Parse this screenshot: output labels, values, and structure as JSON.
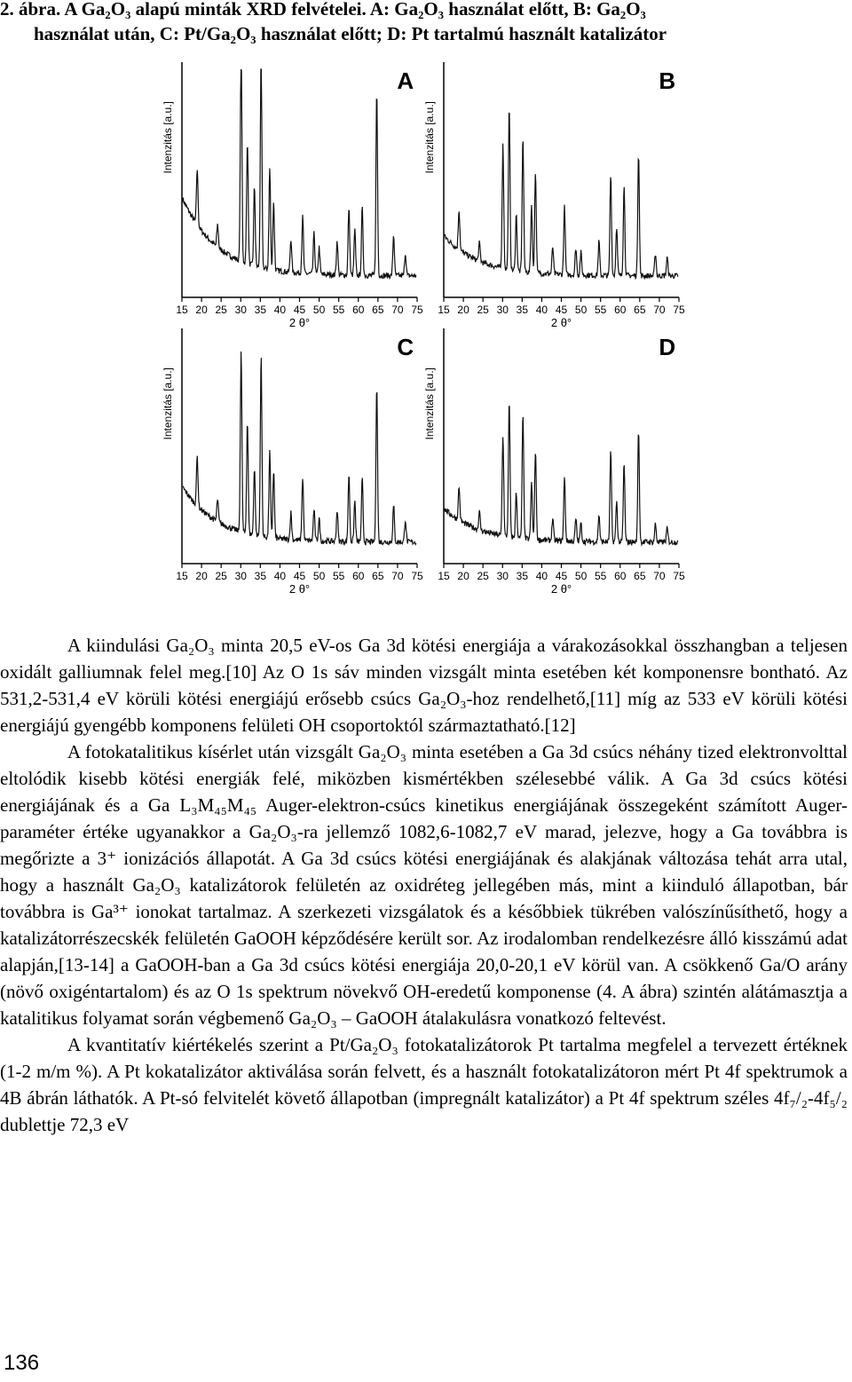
{
  "caption": {
    "line1": "2. ábra. A Ga₂O₃ alapú minták XRD felvételei. A: Ga₂O₃ használat előtt, B: Ga₂O₃",
    "line2": "használat után, C: Pt/Ga₂O₃ használat előtt; D: Pt tartalmú használt katalizátor"
  },
  "chart_data": [
    {
      "type": "line",
      "panel": "A",
      "xlabel": "2 θ°",
      "ylabel": "Intenzitás [a.u.]",
      "x_ticks": [
        15,
        20,
        25,
        30,
        35,
        40,
        45,
        50,
        55,
        60,
        65,
        70,
        75
      ],
      "xlim": [
        15,
        75
      ],
      "peaks": [
        [
          18.9,
          0.25
        ],
        [
          24.1,
          0.1
        ],
        [
          30.1,
          0.95
        ],
        [
          31.7,
          0.55
        ],
        [
          33.5,
          0.35
        ],
        [
          35.2,
          0.95
        ],
        [
          37.4,
          0.45
        ],
        [
          38.4,
          0.3
        ],
        [
          42.8,
          0.15
        ],
        [
          45.8,
          0.25
        ],
        [
          48.7,
          0.18
        ],
        [
          50.0,
          0.12
        ],
        [
          54.6,
          0.15
        ],
        [
          57.6,
          0.3
        ],
        [
          59.1,
          0.2
        ],
        [
          61.0,
          0.3
        ],
        [
          64.7,
          0.82
        ],
        [
          69.0,
          0.18
        ],
        [
          72.0,
          0.1
        ]
      ],
      "baseline": 0.35
    },
    {
      "type": "line",
      "panel": "B",
      "xlabel": "2 θ°",
      "ylabel": "Intenzitás [a.u.]",
      "x_ticks": [
        15,
        20,
        25,
        30,
        35,
        40,
        45,
        50,
        55,
        60,
        65,
        70,
        75
      ],
      "xlim": [
        15,
        75
      ],
      "peaks": [
        [
          18.9,
          0.18
        ],
        [
          24.1,
          0.08
        ],
        [
          30.1,
          0.55
        ],
        [
          31.7,
          0.72
        ],
        [
          33.5,
          0.25
        ],
        [
          35.2,
          0.6
        ],
        [
          37.4,
          0.3
        ],
        [
          38.4,
          0.45
        ],
        [
          42.8,
          0.12
        ],
        [
          45.8,
          0.3
        ],
        [
          48.7,
          0.12
        ],
        [
          50.0,
          0.1
        ],
        [
          54.6,
          0.15
        ],
        [
          57.6,
          0.45
        ],
        [
          59.1,
          0.22
        ],
        [
          61.0,
          0.4
        ],
        [
          64.7,
          0.55
        ],
        [
          69.0,
          0.1
        ],
        [
          72.0,
          0.08
        ]
      ],
      "baseline": 0.18
    },
    {
      "type": "line",
      "panel": "C",
      "xlabel": "2 θ°",
      "ylabel": "Intenzitás [a.u.]",
      "x_ticks": [
        15,
        20,
        25,
        30,
        35,
        40,
        45,
        50,
        55,
        60,
        65,
        70,
        75
      ],
      "xlim": [
        15,
        75
      ],
      "peaks": [
        [
          18.9,
          0.22
        ],
        [
          24.1,
          0.1
        ],
        [
          30.1,
          0.8
        ],
        [
          31.7,
          0.5
        ],
        [
          33.5,
          0.3
        ],
        [
          35.2,
          0.8
        ],
        [
          37.4,
          0.38
        ],
        [
          38.4,
          0.3
        ],
        [
          42.8,
          0.12
        ],
        [
          45.8,
          0.28
        ],
        [
          48.7,
          0.14
        ],
        [
          50.0,
          0.1
        ],
        [
          54.6,
          0.14
        ],
        [
          57.6,
          0.3
        ],
        [
          59.1,
          0.18
        ],
        [
          61.0,
          0.28
        ],
        [
          64.7,
          0.7
        ],
        [
          69.0,
          0.16
        ],
        [
          72.0,
          0.1
        ]
      ],
      "baseline": 0.25
    },
    {
      "type": "line",
      "panel": "D",
      "xlabel": "2 θ°",
      "ylabel": "Intenzitás [a.u.]",
      "x_ticks": [
        15,
        20,
        25,
        30,
        35,
        40,
        45,
        50,
        55,
        60,
        65,
        70,
        75
      ],
      "xlim": [
        15,
        75
      ],
      "peaks": [
        [
          18.9,
          0.15
        ],
        [
          24.1,
          0.08
        ],
        [
          30.1,
          0.45
        ],
        [
          31.7,
          0.6
        ],
        [
          33.5,
          0.2
        ],
        [
          35.2,
          0.55
        ],
        [
          37.4,
          0.25
        ],
        [
          38.4,
          0.4
        ],
        [
          42.8,
          0.1
        ],
        [
          45.8,
          0.28
        ],
        [
          48.7,
          0.1
        ],
        [
          50.0,
          0.08
        ],
        [
          54.6,
          0.12
        ],
        [
          57.6,
          0.4
        ],
        [
          59.1,
          0.18
        ],
        [
          61.0,
          0.35
        ],
        [
          64.7,
          0.5
        ],
        [
          69.0,
          0.08
        ],
        [
          72.0,
          0.06
        ]
      ],
      "baseline": 0.15
    }
  ],
  "body": {
    "p1": "A kiindulási Ga₂O₃ minta 20,5 eV-os Ga 3d kötési energiája a várakozásokkal összhangban a teljesen oxidált galliumnak felel meg.[10] Az O 1s sáv minden vizsgált minta esetében két komponensre bontható. Az 531,2-531,4 eV körüli kötési energiájú erősebb csúcs Ga₂O₃-hoz rendelhető,[11] míg az 533 eV körüli kötési energiájú gyengébb komponens felületi OH csoportoktól származtatható.[12]",
    "p2": "A fotokatalitikus kísérlet után vizsgált Ga₂O₃ minta esetében a Ga 3d csúcs néhány tized elektronvolttal eltolódik kisebb kötési energiák felé, miközben kismértékben szélesebbé válik. A Ga 3d csúcs kötési energiájának és a Ga L₃M₄₅M₄₅ Auger-elektron-csúcs kinetikus energiájának összegeként számított Auger-paraméter értéke ugyanakkor a Ga₂O₃-ra jellemző 1082,6-1082,7 eV marad, jelezve, hogy a Ga továbbra is megőrizte a 3⁺ ionizációs állapotát. A Ga 3d csúcs kötési energiájának és alakjának változása tehát arra utal, hogy a használt Ga₂O₃ katalizátorok felületén az oxidréteg jellegében más, mint a kiinduló állapotban, bár továbbra is Ga³⁺ ionokat tartalmaz. A szerkezeti vizsgálatok és a későbbiek tükrében valószínűsíthető, hogy a katalizátorrészecskék felületén GaOOH képződésére került sor. Az irodalomban rendelkezésre álló kisszámú adat alapján,[13-14] a GaOOH-ban a Ga 3d csúcs kötési energiája 20,0-20,1 eV körül van. A csökkenő Ga/O arány (növő oxigéntartalom) és az O 1s spektrum növekvő OH-eredetű komponense (4. A ábra) szintén alátámasztja a katalitikus folyamat során végbemenő Ga₂O₃ – GaOOH átalakulásra vonatkozó feltevést.",
    "p3": "A kvantitatív kiértékelés szerint a Pt/Ga₂O₃ fotokatalizátorok Pt tartalma megfelel a tervezett értéknek (1-2 m/m %). A Pt kokatalizátor aktiválása során felvett, és a használt fotokatalizátoron mért Pt 4f spektrumok a 4B ábrán láthatók. A Pt-só felvitelét követő állapotban (impregnált katalizátor) a Pt 4f spektrum széles 4f₇/₂-4f₅/₂ dublettje 72,3 eV"
  },
  "page_number": "136"
}
